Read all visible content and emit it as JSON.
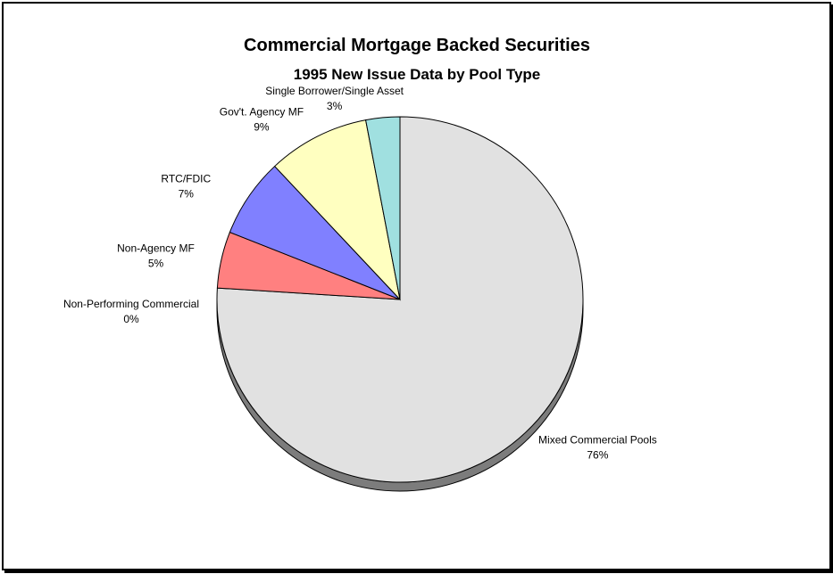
{
  "chart_data": {
    "type": "pie",
    "title": "Commercial Mortgage Backed Securities",
    "subtitle": "1995 New Issue Data by Pool Type",
    "slices": [
      {
        "name": "Mixed Commercial Pools",
        "value": 76,
        "label": "76%",
        "color": "#e1e1e1"
      },
      {
        "name": "Non-Agency MF",
        "value": 5,
        "label": "5%",
        "color": "#ff8080"
      },
      {
        "name": "RTC/FDIC",
        "value": 7,
        "label": "7%",
        "color": "#8080ff"
      },
      {
        "name": "Non-Performing Commercial",
        "value": 0,
        "label": "0%",
        "color": "#c0c0ff"
      },
      {
        "name": "Gov't. Agency MF",
        "value": 9,
        "label": "9%",
        "color": "#ffffc0"
      },
      {
        "name": "Single Borrower/Single Asset",
        "value": 3,
        "label": "3%",
        "color": "#a0e0e0"
      }
    ]
  }
}
